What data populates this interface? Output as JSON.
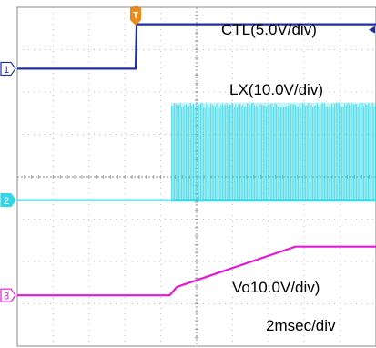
{
  "chart_data": {
    "type": "line",
    "instrument": "oscilloscope",
    "grid": true,
    "grid_divisions": {
      "x": 10,
      "y": 8
    },
    "time_scale": "2msec/div",
    "trigger_marker": "T",
    "channel_markers": [
      "1",
      "2",
      "3"
    ],
    "series": [
      {
        "name": "CTL",
        "label": "CTL(5.0V/div)",
        "channel": "1",
        "color": "#1f2fa8",
        "volts_per_div": 5.0,
        "baseline_div": 6.55,
        "x_ms": [
          0.0,
          6.6,
          6.65,
          20.0
        ],
        "y_div": [
          0.0,
          0.0,
          1.05,
          1.05
        ]
      },
      {
        "name": "LX",
        "label": "LX(10.0V/div)",
        "channel": "2",
        "color": "#33d6e6",
        "volts_per_div": 10.0,
        "baseline_div": 3.45,
        "switching_start_ms": 8.6,
        "switching_amplitude_div": 2.3
      },
      {
        "name": "Vo",
        "label": "Vo10.0V/div)",
        "channel": "3",
        "color": "#e617d4",
        "volts_per_div": 10.0,
        "baseline_div": 1.2,
        "x_ms": [
          0.0,
          8.5,
          8.9,
          15.5,
          20.0
        ],
        "y_div": [
          0.0,
          0.0,
          0.2,
          1.15,
          1.15
        ]
      }
    ]
  }
}
